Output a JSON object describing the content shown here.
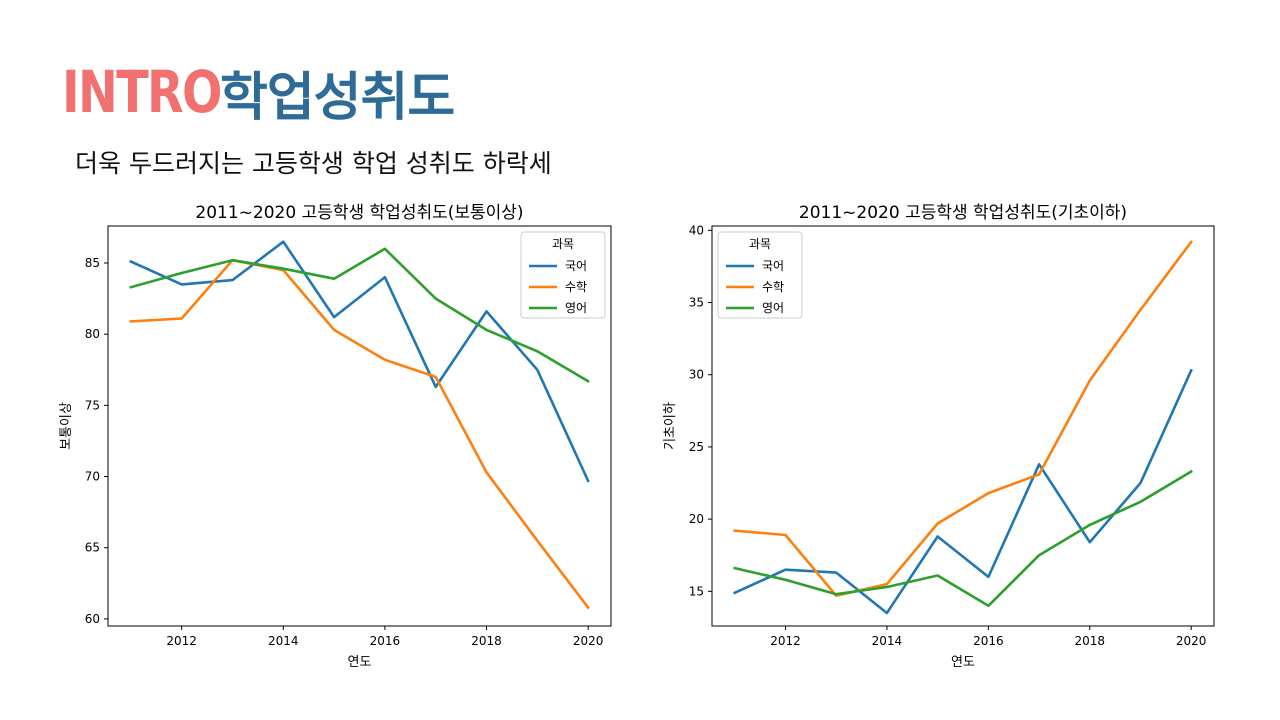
{
  "slide": {
    "label": "INTRO",
    "topic": "학업성취도",
    "subtitle": "더욱 두드러지는 고등학생 학업 성취도 하락세",
    "colors": {
      "label": "#f0716f",
      "topic": "#2e6b96"
    }
  },
  "legend": {
    "title": "과목",
    "items": [
      "국어",
      "수학",
      "영어"
    ]
  },
  "series_colors": [
    "#1f77b4",
    "#ff7f0e",
    "#2ca02c"
  ],
  "chart_data": [
    {
      "type": "line",
      "title": "2011~2020 고등학생 학업성취도(보통이상)",
      "xlabel": "연도",
      "ylabel": "보통이상",
      "x": [
        2011,
        2012,
        2013,
        2014,
        2015,
        2016,
        2017,
        2018,
        2019,
        2020
      ],
      "xlim": [
        2010.55,
        2020.45
      ],
      "ylim": [
        59.5,
        87.6
      ],
      "xticks": [
        2012,
        2014,
        2016,
        2018,
        2020
      ],
      "yticks": [
        60,
        65,
        70,
        75,
        80,
        85
      ],
      "legend_position": "top-right",
      "grid": false,
      "series": [
        {
          "name": "국어",
          "values": [
            85.1,
            83.5,
            83.8,
            86.5,
            81.2,
            84.0,
            76.3,
            81.6,
            77.5,
            69.7
          ]
        },
        {
          "name": "수학",
          "values": [
            80.9,
            81.1,
            85.2,
            84.5,
            80.3,
            78.2,
            77.0,
            70.3,
            65.5,
            60.8
          ]
        },
        {
          "name": "영어",
          "values": [
            83.3,
            84.3,
            85.2,
            84.6,
            83.9,
            86.0,
            82.5,
            80.3,
            78.8,
            76.7
          ]
        }
      ]
    },
    {
      "type": "line",
      "title": "2011~2020 고등학생 학업성취도(기초이하)",
      "xlabel": "연도",
      "ylabel": "기초이하",
      "x": [
        2011,
        2012,
        2013,
        2014,
        2015,
        2016,
        2017,
        2018,
        2019,
        2020
      ],
      "xlim": [
        2010.55,
        2020.45
      ],
      "ylim": [
        12.6,
        40.3
      ],
      "xticks": [
        2012,
        2014,
        2016,
        2018,
        2020
      ],
      "yticks": [
        15,
        20,
        25,
        30,
        35,
        40
      ],
      "legend_position": "top-left",
      "grid": false,
      "series": [
        {
          "name": "국어",
          "values": [
            14.9,
            16.5,
            16.3,
            13.5,
            18.8,
            16.0,
            23.8,
            18.4,
            22.5,
            30.3
          ]
        },
        {
          "name": "수학",
          "values": [
            19.2,
            18.9,
            14.7,
            15.5,
            19.7,
            21.8,
            23.1,
            29.6,
            34.5,
            39.2
          ]
        },
        {
          "name": "영어",
          "values": [
            16.6,
            15.8,
            14.8,
            15.3,
            16.1,
            14.0,
            17.5,
            19.6,
            21.2,
            23.3
          ]
        }
      ]
    }
  ]
}
